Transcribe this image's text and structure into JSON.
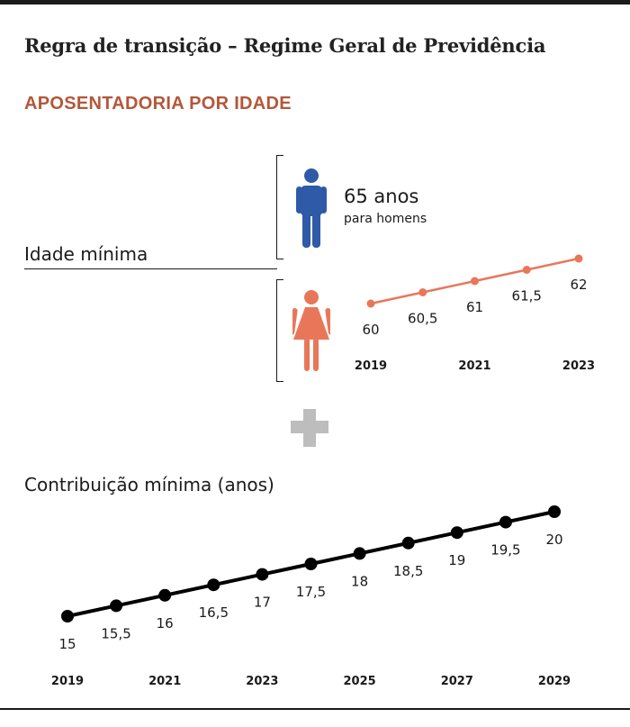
{
  "title": "Regra de transição – Regime Geral de Previdência",
  "subtitle": "APOSENTADORIA POR IDADE",
  "idade_minima_label": "Idade mínima",
  "men": {
    "age": "65 anos",
    "sub": "para homens",
    "icon": "man-icon",
    "color": "#2e5aa8"
  },
  "women": {
    "icon": "woman-icon",
    "color": "#e8775a"
  },
  "contribuicao_label": "Contribuição mínima (anos)",
  "plus_icon": "plus-icon",
  "colors": {
    "accent": "#b5563a",
    "women_line": "#e8775a",
    "men": "#2e5aa8",
    "contrib_line": "#000000",
    "plus": "#bdbdbd"
  },
  "chart_data": [
    {
      "type": "line",
      "title": "",
      "xlabel": "",
      "ylabel": "",
      "x": [
        2019,
        2020,
        2021,
        2022,
        2023
      ],
      "x_tick_labels": [
        "2019",
        "2021",
        "2023"
      ],
      "series": [
        {
          "values": [
            60,
            60.5,
            61,
            61.5,
            62
          ],
          "labels": [
            "60",
            "60,5",
            "61",
            "61,5",
            "62"
          ]
        }
      ],
      "ylim": [
        60,
        62
      ],
      "grid": false
    },
    {
      "type": "line",
      "title": "",
      "xlabel": "",
      "ylabel": "",
      "x": [
        2019,
        2020,
        2021,
        2022,
        2023,
        2024,
        2025,
        2026,
        2027,
        2028,
        2029
      ],
      "x_tick_labels": [
        "2019",
        "2021",
        "2023",
        "2025",
        "2027",
        "2029"
      ],
      "series": [
        {
          "values": [
            15,
            15.5,
            16,
            16.5,
            17,
            17.5,
            18,
            18.5,
            19,
            19.5,
            20
          ],
          "labels": [
            "15",
            "15,5",
            "16",
            "16,5",
            "17",
            "17,5",
            "18",
            "18,5",
            "19",
            "19,5",
            "20"
          ]
        }
      ],
      "ylim": [
        15,
        20
      ],
      "grid": false
    }
  ]
}
